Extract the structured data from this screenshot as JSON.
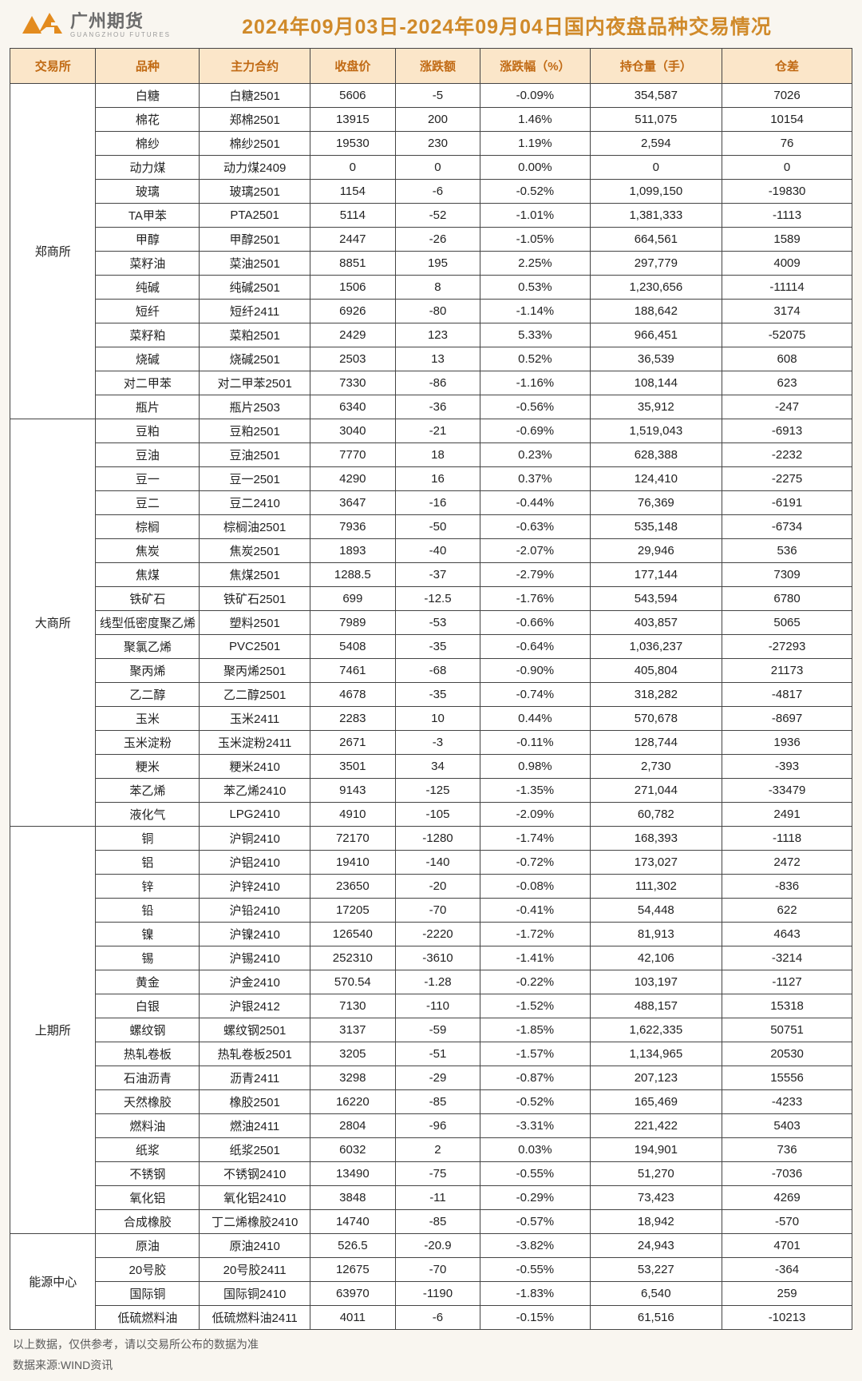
{
  "brand": {
    "cn": "广州期货",
    "en": "GUANGZHOU  FUTURES",
    "logo_color": "#e38b1e"
  },
  "title": "2024年09月03日-2024年09月04日国内夜盘品种交易情况",
  "colors": {
    "header_bg": "#fbe6c9",
    "header_fg": "#c16a14",
    "border": "#444444",
    "page_bg": "#f9f6f0",
    "title_fg": "#d08a2a"
  },
  "columns": [
    "交易所",
    "品种",
    "主力合约",
    "收盘价",
    "涨跌额",
    "涨跌幅（%）",
    "持仓量（手）",
    "仓差"
  ],
  "groups": [
    {
      "exchange": "郑商所",
      "rows": [
        [
          "白糖",
          "白糖2501",
          "5606",
          "-5",
          "-0.09%",
          "354,587",
          "7026"
        ],
        [
          "棉花",
          "郑棉2501",
          "13915",
          "200",
          "1.46%",
          "511,075",
          "10154"
        ],
        [
          "棉纱",
          "棉纱2501",
          "19530",
          "230",
          "1.19%",
          "2,594",
          "76"
        ],
        [
          "动力煤",
          "动力煤2409",
          "0",
          "0",
          "0.00%",
          "0",
          "0"
        ],
        [
          "玻璃",
          "玻璃2501",
          "1154",
          "-6",
          "-0.52%",
          "1,099,150",
          "-19830"
        ],
        [
          "TA甲苯",
          "PTA2501",
          "5114",
          "-52",
          "-1.01%",
          "1,381,333",
          "-1113"
        ],
        [
          "甲醇",
          "甲醇2501",
          "2447",
          "-26",
          "-1.05%",
          "664,561",
          "1589"
        ],
        [
          "菜籽油",
          "菜油2501",
          "8851",
          "195",
          "2.25%",
          "297,779",
          "4009"
        ],
        [
          "纯碱",
          "纯碱2501",
          "1506",
          "8",
          "0.53%",
          "1,230,656",
          "-11114"
        ],
        [
          "短纤",
          "短纤2411",
          "6926",
          "-80",
          "-1.14%",
          "188,642",
          "3174"
        ],
        [
          "菜籽粕",
          "菜粕2501",
          "2429",
          "123",
          "5.33%",
          "966,451",
          "-52075"
        ],
        [
          "烧碱",
          "烧碱2501",
          "2503",
          "13",
          "0.52%",
          "36,539",
          "608"
        ],
        [
          "对二甲苯",
          "对二甲苯2501",
          "7330",
          "-86",
          "-1.16%",
          "108,144",
          "623"
        ],
        [
          "瓶片",
          "瓶片2503",
          "6340",
          "-36",
          "-0.56%",
          "35,912",
          "-247"
        ]
      ]
    },
    {
      "exchange": "大商所",
      "rows": [
        [
          "豆粕",
          "豆粕2501",
          "3040",
          "-21",
          "-0.69%",
          "1,519,043",
          "-6913"
        ],
        [
          "豆油",
          "豆油2501",
          "7770",
          "18",
          "0.23%",
          "628,388",
          "-2232"
        ],
        [
          "豆一",
          "豆一2501",
          "4290",
          "16",
          "0.37%",
          "124,410",
          "-2275"
        ],
        [
          "豆二",
          "豆二2410",
          "3647",
          "-16",
          "-0.44%",
          "76,369",
          "-6191"
        ],
        [
          "棕榈",
          "棕榈油2501",
          "7936",
          "-50",
          "-0.63%",
          "535,148",
          "-6734"
        ],
        [
          "焦炭",
          "焦炭2501",
          "1893",
          "-40",
          "-2.07%",
          "29,946",
          "536"
        ],
        [
          "焦煤",
          "焦煤2501",
          "1288.5",
          "-37",
          "-2.79%",
          "177,144",
          "7309"
        ],
        [
          "铁矿石",
          "铁矿石2501",
          "699",
          "-12.5",
          "-1.76%",
          "543,594",
          "6780"
        ],
        [
          "线型低密度聚乙烯",
          "塑料2501",
          "7989",
          "-53",
          "-0.66%",
          "403,857",
          "5065"
        ],
        [
          "聚氯乙烯",
          "PVC2501",
          "5408",
          "-35",
          "-0.64%",
          "1,036,237",
          "-27293"
        ],
        [
          "聚丙烯",
          "聚丙烯2501",
          "7461",
          "-68",
          "-0.90%",
          "405,804",
          "21173"
        ],
        [
          "乙二醇",
          "乙二醇2501",
          "4678",
          "-35",
          "-0.74%",
          "318,282",
          "-4817"
        ],
        [
          "玉米",
          "玉米2411",
          "2283",
          "10",
          "0.44%",
          "570,678",
          "-8697"
        ],
        [
          "玉米淀粉",
          "玉米淀粉2411",
          "2671",
          "-3",
          "-0.11%",
          "128,744",
          "1936"
        ],
        [
          "粳米",
          "粳米2410",
          "3501",
          "34",
          "0.98%",
          "2,730",
          "-393"
        ],
        [
          "苯乙烯",
          "苯乙烯2410",
          "9143",
          "-125",
          "-1.35%",
          "271,044",
          "-33479"
        ],
        [
          "液化气",
          "LPG2410",
          "4910",
          "-105",
          "-2.09%",
          "60,782",
          "2491"
        ]
      ]
    },
    {
      "exchange": "上期所",
      "rows": [
        [
          "铜",
          "沪铜2410",
          "72170",
          "-1280",
          "-1.74%",
          "168,393",
          "-1118"
        ],
        [
          "铝",
          "沪铝2410",
          "19410",
          "-140",
          "-0.72%",
          "173,027",
          "2472"
        ],
        [
          "锌",
          "沪锌2410",
          "23650",
          "-20",
          "-0.08%",
          "111,302",
          "-836"
        ],
        [
          "铅",
          "沪铅2410",
          "17205",
          "-70",
          "-0.41%",
          "54,448",
          "622"
        ],
        [
          "镍",
          "沪镍2410",
          "126540",
          "-2220",
          "-1.72%",
          "81,913",
          "4643"
        ],
        [
          "锡",
          "沪锡2410",
          "252310",
          "-3610",
          "-1.41%",
          "42,106",
          "-3214"
        ],
        [
          "黄金",
          "沪金2410",
          "570.54",
          "-1.28",
          "-0.22%",
          "103,197",
          "-1127"
        ],
        [
          "白银",
          "沪银2412",
          "7130",
          "-110",
          "-1.52%",
          "488,157",
          "15318"
        ],
        [
          "螺纹钢",
          "螺纹钢2501",
          "3137",
          "-59",
          "-1.85%",
          "1,622,335",
          "50751"
        ],
        [
          "热轧卷板",
          "热轧卷板2501",
          "3205",
          "-51",
          "-1.57%",
          "1,134,965",
          "20530"
        ],
        [
          "石油沥青",
          "沥青2411",
          "3298",
          "-29",
          "-0.87%",
          "207,123",
          "15556"
        ],
        [
          "天然橡胶",
          "橡胶2501",
          "16220",
          "-85",
          "-0.52%",
          "165,469",
          "-4233"
        ],
        [
          "燃料油",
          "燃油2411",
          "2804",
          "-96",
          "-3.31%",
          "221,422",
          "5403"
        ],
        [
          "纸浆",
          "纸浆2501",
          "6032",
          "2",
          "0.03%",
          "194,901",
          "736"
        ],
        [
          "不锈钢",
          "不锈钢2410",
          "13490",
          "-75",
          "-0.55%",
          "51,270",
          "-7036"
        ],
        [
          "氧化铝",
          "氧化铝2410",
          "3848",
          "-11",
          "-0.29%",
          "73,423",
          "4269"
        ],
        [
          "合成橡胶",
          "丁二烯橡胶2410",
          "14740",
          "-85",
          "-0.57%",
          "18,942",
          "-570"
        ]
      ]
    },
    {
      "exchange": "能源中心",
      "rows": [
        [
          "原油",
          "原油2410",
          "526.5",
          "-20.9",
          "-3.82%",
          "24,943",
          "4701"
        ],
        [
          "20号胶",
          "20号胶2411",
          "12675",
          "-70",
          "-0.55%",
          "53,227",
          "-364"
        ],
        [
          "国际铜",
          "国际铜2410",
          "63970",
          "-1190",
          "-1.83%",
          "6,540",
          "259"
        ],
        [
          "低硫燃料油",
          "低硫燃料油2411",
          "4011",
          "-6",
          "-0.15%",
          "61,516",
          "-10213"
        ]
      ]
    }
  ],
  "footnote": "以上数据，仅供参考，请以交易所公布的数据为准",
  "source": "数据来源:WIND资讯"
}
